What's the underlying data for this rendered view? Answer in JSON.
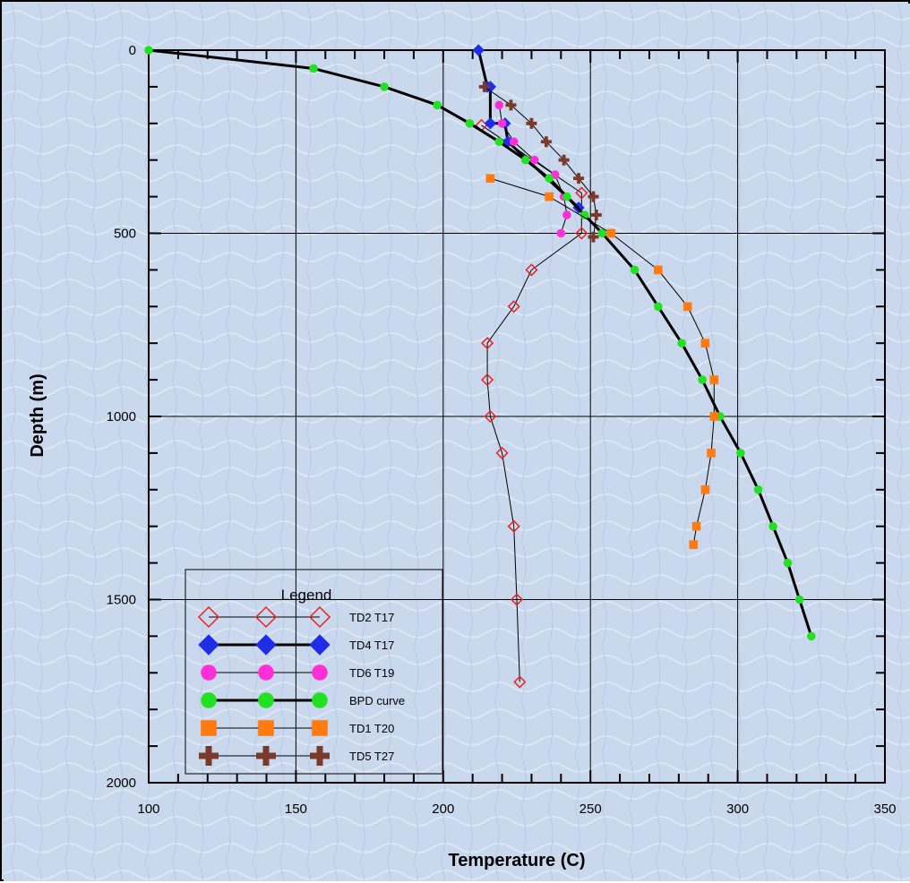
{
  "chart_data": {
    "type": "line",
    "title": "",
    "xlabel": "Temperature (C)",
    "ylabel": "Depth (m)",
    "xlim": [
      100,
      350
    ],
    "ylim": [
      2000,
      0
    ],
    "x_ticks": [
      100,
      150,
      200,
      250,
      300,
      350
    ],
    "y_ticks": [
      0,
      500,
      1000,
      1500,
      2000
    ],
    "grid": true,
    "background_color": "#c9d8ec",
    "legend": {
      "title": "Legend",
      "placement": "lower-left"
    },
    "series": [
      {
        "name": "TD2 T17",
        "color": "#e8211f",
        "marker": "diamond-open",
        "line": "thin",
        "points": [
          [
            213,
            205
          ],
          [
            247,
            390
          ],
          [
            247,
            500
          ],
          [
            230,
            600
          ],
          [
            224,
            700
          ],
          [
            215,
            800
          ],
          [
            215,
            900
          ],
          [
            216,
            1000
          ],
          [
            220,
            1100
          ],
          [
            224,
            1300
          ],
          [
            225,
            1500
          ],
          [
            226,
            1725
          ]
        ]
      },
      {
        "name": "TD4 T17",
        "color": "#1f2ee6",
        "marker": "diamond",
        "line": "thick",
        "points": [
          [
            212,
            0
          ],
          [
            215,
            100
          ],
          [
            216,
            100
          ],
          [
            216,
            200
          ],
          [
            221,
            200
          ],
          [
            222,
            250
          ],
          [
            246,
            430
          ]
        ]
      },
      {
        "name": "TD6 T19",
        "color": "#ff2ed6",
        "marker": "circle",
        "line": "thin",
        "points": [
          [
            219,
            150
          ],
          [
            220,
            200
          ],
          [
            224,
            250
          ],
          [
            231,
            300
          ],
          [
            238,
            340
          ],
          [
            241,
            400
          ],
          [
            242,
            450
          ],
          [
            240,
            500
          ]
        ]
      },
      {
        "name": "BPD curve",
        "color": "#22e022",
        "marker": "circle",
        "line": "thick",
        "points": [
          [
            100,
            0
          ],
          [
            156,
            50
          ],
          [
            180,
            100
          ],
          [
            198,
            150
          ],
          [
            209,
            200
          ],
          [
            219,
            250
          ],
          [
            228,
            300
          ],
          [
            236,
            350
          ],
          [
            242,
            400
          ],
          [
            248,
            450
          ],
          [
            254,
            500
          ],
          [
            265,
            600
          ],
          [
            273,
            700
          ],
          [
            281,
            800
          ],
          [
            288,
            900
          ],
          [
            294,
            1000
          ],
          [
            301,
            1100
          ],
          [
            307,
            1200
          ],
          [
            312,
            1300
          ],
          [
            317,
            1400
          ],
          [
            321,
            1500
          ],
          [
            325,
            1600
          ]
        ]
      },
      {
        "name": "TD1 T20",
        "color": "#ff7a10",
        "marker": "square",
        "line": "thin",
        "points": [
          [
            216,
            350
          ],
          [
            236,
            400
          ],
          [
            257,
            500
          ],
          [
            273,
            600
          ],
          [
            283,
            700
          ],
          [
            289,
            800
          ],
          [
            292,
            900
          ],
          [
            292,
            1000
          ],
          [
            291,
            1100
          ],
          [
            289,
            1200
          ],
          [
            286,
            1300
          ],
          [
            285,
            1350
          ]
        ]
      },
      {
        "name": "TD5 T27",
        "color": "#7a3a2a",
        "marker": "plus",
        "line": "thin",
        "points": [
          [
            214,
            100
          ],
          [
            223,
            150
          ],
          [
            230,
            200
          ],
          [
            235,
            250
          ],
          [
            241,
            300
          ],
          [
            246,
            350
          ],
          [
            251,
            400
          ],
          [
            252,
            450
          ],
          [
            251,
            510
          ]
        ]
      }
    ]
  }
}
